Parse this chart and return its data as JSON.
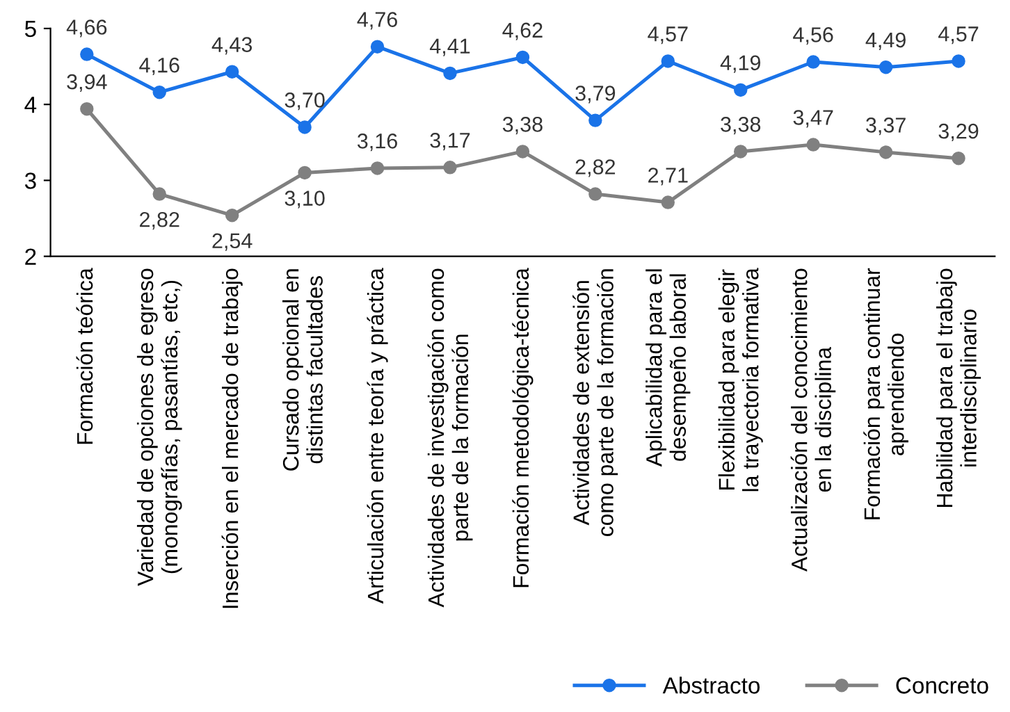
{
  "chart_data": {
    "type": "line",
    "categories": [
      "Formación teórica",
      "Variedad de opciones de egreso\n(monografías, pasantías, etc,)",
      "Inserción en el mercado de trabajo",
      "Cursado opcional en\ndistintas facultades",
      "Articulación entre teoría y práctica",
      "Actividades de investigación como\nparte de la formación",
      "Formación metodológica-técnica",
      "Actividades de extensión\ncomo parte de la formación",
      "Aplicabilidad para el\ndesempeño laboral",
      "Flexibilidad para elegir\nla trayectoria formativa",
      "Actualización del conocimiento\nen la disciplina",
      "Formación para continuar\naprendiendo",
      "Habilidad para el trabajo\ninterdisciplinario"
    ],
    "series": [
      {
        "name": "Abstracto",
        "color": "#1a73e8",
        "values": [
          4.66,
          4.16,
          4.43,
          3.7,
          4.76,
          4.41,
          4.62,
          3.79,
          4.57,
          4.19,
          4.56,
          4.49,
          4.57
        ],
        "value_labels": [
          "4,66",
          "4,16",
          "4,43",
          "3,70",
          "4,76",
          "4,41",
          "4,62",
          "3,79",
          "4,57",
          "4,19",
          "4,56",
          "4,49",
          "4,57"
        ]
      },
      {
        "name": "Concreto",
        "color": "#808080",
        "values": [
          3.94,
          2.82,
          2.54,
          3.1,
          3.16,
          3.17,
          3.38,
          2.82,
          2.71,
          3.38,
          3.47,
          3.37,
          3.29
        ],
        "value_labels": [
          "3,94",
          "2,82",
          "2,54",
          "3,10",
          "3,16",
          "3,17",
          "3,38",
          "2,82",
          "2,71",
          "3,38",
          "3,47",
          "3,37",
          "3,29"
        ]
      }
    ],
    "ylim": [
      2,
      5
    ],
    "yticks": [
      2,
      3,
      4,
      5
    ],
    "grid": false,
    "marker": "circle",
    "line_style": "solid",
    "legend": "bottom right"
  }
}
